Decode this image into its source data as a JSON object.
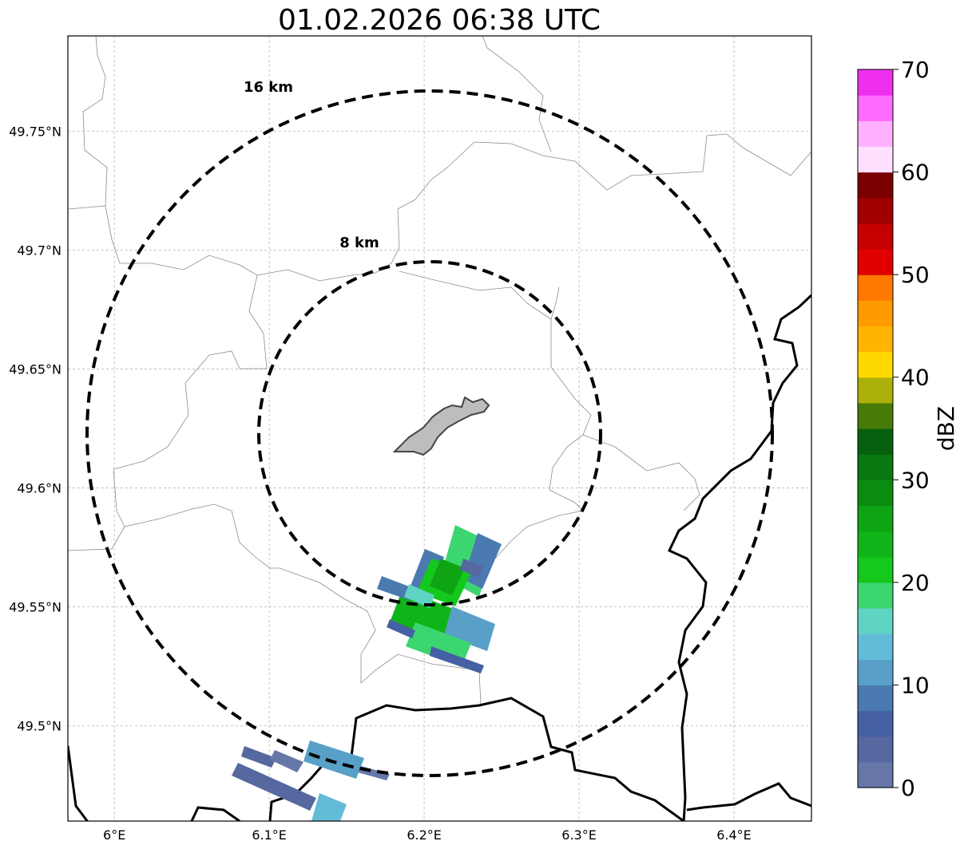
{
  "title": "01.02.2026 06:38 UTC",
  "map": {
    "lon_range": [
      5.97,
      6.45
    ],
    "lat_range": [
      49.46,
      49.79
    ],
    "lon_ticks": [
      {
        "value": 6.0,
        "label": "6°E"
      },
      {
        "value": 6.1,
        "label": "6.1°E"
      },
      {
        "value": 6.2,
        "label": "6.2°E"
      },
      {
        "value": 6.3,
        "label": "6.3°E"
      },
      {
        "value": 6.4,
        "label": "6.4°E"
      }
    ],
    "lat_ticks": [
      {
        "value": 49.5,
        "label": "49.5°N"
      },
      {
        "value": 49.55,
        "label": "49.55°N"
      },
      {
        "value": 49.6,
        "label": "49.6°N"
      },
      {
        "value": 49.65,
        "label": "49.65°N"
      },
      {
        "value": 49.7,
        "label": "49.7°N"
      },
      {
        "value": 49.75,
        "label": "49.75°N"
      }
    ],
    "grid": true,
    "range_rings": [
      {
        "label": "8 km",
        "radius_km": 8
      },
      {
        "label": "16 km",
        "radius_km": 16
      }
    ],
    "center_feature": "city-area"
  },
  "colorbar": {
    "label": "dBZ",
    "min": 0,
    "max": 70,
    "ticks": [
      {
        "value": 0,
        "label": "0"
      },
      {
        "value": 10,
        "label": "10"
      },
      {
        "value": 20,
        "label": "20"
      },
      {
        "value": 30,
        "label": "30"
      },
      {
        "value": 40,
        "label": "40"
      },
      {
        "value": 50,
        "label": "50"
      },
      {
        "value": 60,
        "label": "60"
      },
      {
        "value": 70,
        "label": "70"
      }
    ],
    "colors": [
      "#6677a8",
      "#5568a0",
      "#4560a4",
      "#4a7ab0",
      "#58a0c8",
      "#62bcd8",
      "#60d4c4",
      "#3cd670",
      "#14c81c",
      "#10b418",
      "#0ea414",
      "#0b8c10",
      "#087810",
      "#066010",
      "#487a08",
      "#acb00a",
      "#ffd800",
      "#ffb400",
      "#ff9a00",
      "#ff7800",
      "#e00000",
      "#c40000",
      "#a00000",
      "#7a0000",
      "#ffe0ff",
      "#ffb0ff",
      "#ff6cff",
      "#ee30ee"
    ]
  }
}
